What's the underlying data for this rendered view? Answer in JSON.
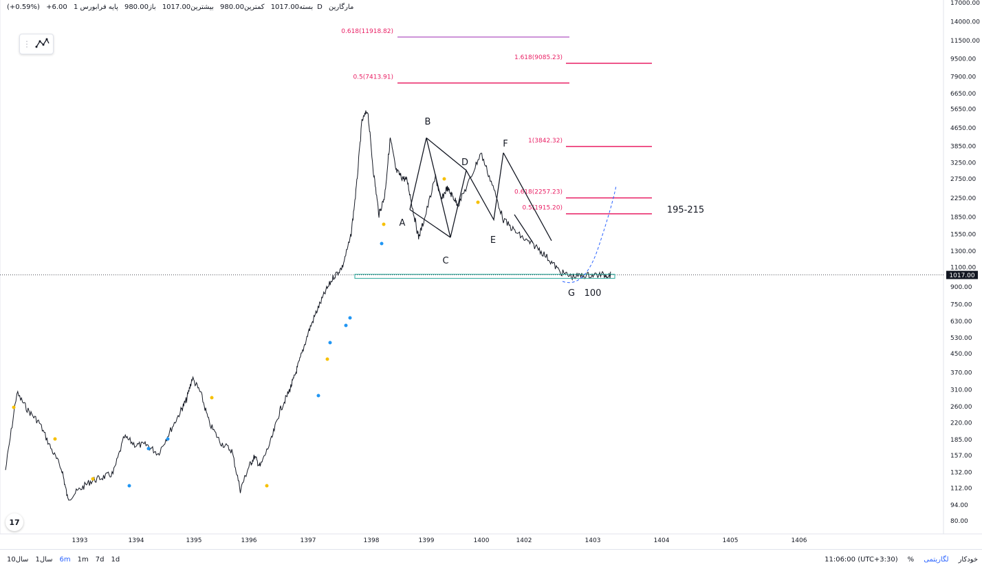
{
  "header": {
    "symbol": "مارگارین",
    "interval": "1D",
    "exchange": "پایه فرابورس",
    "open": "باز980.00",
    "high": "بیشترین1017.00",
    "low": "کمترین980.00",
    "close": "بسته1017.00",
    "change": "+6.00",
    "change_pct": "(+0.59%)"
  },
  "toolbar": {
    "icon": "pattern-tool-icon"
  },
  "colors": {
    "fib": "#e91e63",
    "fib_purple": "#9c27b0",
    "support": "#26a69a",
    "forecast": "#2962ff",
    "price_tag": "#131722"
  },
  "chart_data": {
    "type": "line",
    "title": "",
    "y_scale": "log",
    "ylim": [
      76,
      17000
    ],
    "xlabel": "",
    "ylabel": "",
    "y_ticks": [
      "17000.00",
      "14000.00",
      "11500.00",
      "9500.00",
      "7900.00",
      "6650.00",
      "5650.00",
      "4650.00",
      "3850.00",
      "3250.00",
      "2750.00",
      "2250.00",
      "1850.00",
      "1550.00",
      "1300.00",
      "1100.00",
      "900.00",
      "750.00",
      "630.00",
      "530.00",
      "450.00",
      "370.00",
      "310.00",
      "260.00",
      "220.00",
      "185.00",
      "157.00",
      "132.00",
      "112.00",
      "94.00",
      "80.00"
    ],
    "x_ticks": [
      "1393",
      "1394",
      "1395",
      "1396",
      "1397",
      "1398",
      "1399",
      "1400",
      "1402",
      "1403",
      "1404",
      "1405",
      "1406"
    ],
    "last_price": "1017.00",
    "price_series": {
      "x": [
        1392.0,
        1392.2,
        1392.4,
        1392.6,
        1392.8,
        1393.0,
        1393.1,
        1393.3,
        1393.5,
        1393.7,
        1393.9,
        1394.1,
        1394.3,
        1394.5,
        1394.7,
        1394.9,
        1395.1,
        1395.2,
        1395.3,
        1395.45,
        1395.6,
        1395.8,
        1396.0,
        1396.15,
        1396.3,
        1396.4,
        1396.5,
        1396.7,
        1396.85,
        1397.0,
        1397.1,
        1397.2,
        1397.35,
        1397.5,
        1397.65,
        1397.8,
        1397.95,
        1398.1,
        1398.2,
        1398.3,
        1398.4,
        1398.5,
        1398.6,
        1398.7,
        1398.8,
        1398.9,
        1399.0,
        1399.1,
        1399.2,
        1399.3,
        1399.4,
        1399.6,
        1399.7,
        1399.8,
        1399.9,
        1400.0,
        1400.2,
        1400.4,
        1400.6,
        1400.8,
        1401.0,
        1401.2,
        1401.4,
        1401.6,
        1401.8,
        1402.0,
        1402.2,
        1402.4,
        1402.6,
        1402.7
      ],
      "y": [
        135,
        300,
        250,
        220,
        170,
        135,
        100,
        110,
        120,
        125,
        130,
        190,
        175,
        175,
        160,
        200,
        250,
        280,
        350,
        300,
        220,
        180,
        165,
        110,
        140,
        155,
        140,
        185,
        250,
        300,
        350,
        420,
        560,
        700,
        850,
        1000,
        1100,
        1500,
        2500,
        5000,
        5600,
        3000,
        1900,
        2300,
        4200,
        3000,
        2800,
        2700,
        2000,
        1500,
        1800,
        2800,
        2200,
        2500,
        2300,
        2100,
        2700,
        3600,
        2600,
        1800,
        1600,
        1450,
        1350,
        1200,
        1050,
        1000,
        1010,
        1017,
        1017,
        1017
      ]
    },
    "fib_levels": [
      {
        "label": "0.618(11918.82)",
        "value": 11918.82
      },
      {
        "label": "1.618(9085.23)",
        "value": 9085.23
      },
      {
        "label": "0.5(7413.91)",
        "value": 7413.91
      },
      {
        "label": "1(3842.32)",
        "value": 3842.32
      },
      {
        "label": "0.618(2257.23)",
        "value": 2257.23
      },
      {
        "label": "0.5(1915.20)",
        "value": 1915.2
      }
    ],
    "annotations": [
      {
        "text": "A"
      },
      {
        "text": "B"
      },
      {
        "text": "C"
      },
      {
        "text": "D"
      },
      {
        "text": "E"
      },
      {
        "text": "F"
      },
      {
        "text": "G"
      },
      {
        "text": "100"
      },
      {
        "text": "195-215"
      }
    ]
  },
  "bottom": {
    "timeframes": [
      "10سال",
      "1سال",
      "6m",
      "1m",
      "7d",
      "1d"
    ],
    "active_timeframe": "6m",
    "clock": "11:06:00 (UTC+3:30)",
    "percent": "%",
    "log": "لگاریتمی",
    "auto": "خودکار"
  }
}
